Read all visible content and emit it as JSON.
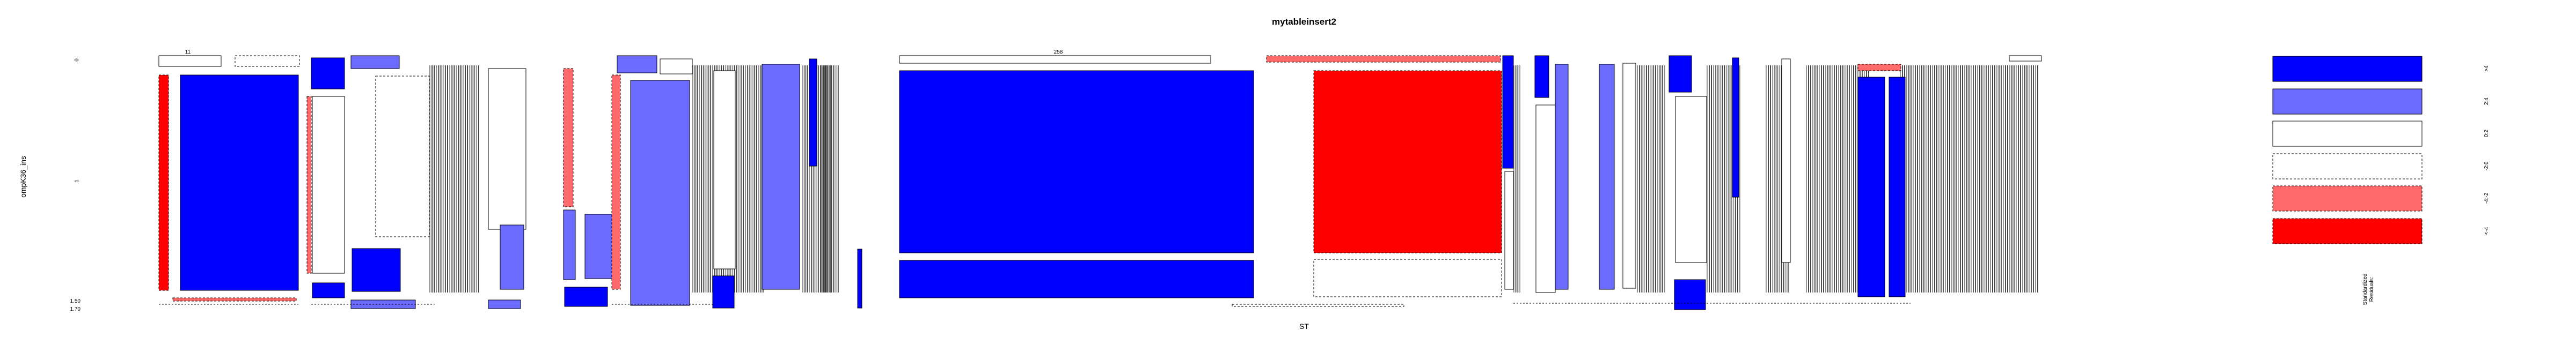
{
  "chart_data": {
    "type": "mosaic",
    "title": "mytableinsert2",
    "xlabel": "ST",
    "ylabel": "ompK36_ins",
    "y_levels": [
      "0",
      "1",
      "1.50",
      "1.70"
    ],
    "legend": {
      "title": "Standardized\nResiduals:",
      "entries": [
        {
          "label": ">4",
          "fill": "#0000ff",
          "border": "solid"
        },
        {
          "label": "2:4",
          "fill": "#6b6bff",
          "border": "solid"
        },
        {
          "label": "0:2",
          "fill": "#ffffff",
          "border": "solid"
        },
        {
          "label": "-2:0",
          "fill": "#ffffff",
          "border": "dashed"
        },
        {
          "label": "-4:-2",
          "fill": "#ff6b6b",
          "border": "dashed"
        },
        {
          "label": "<-4",
          "fill": "#ff0000",
          "border": "dashed"
        }
      ]
    },
    "notable_cells": [
      {
        "x_level": "258",
        "y_level": "1",
        "residual_class": ">4"
      },
      {
        "x_level": "11",
        "y_level": "0",
        "residual_class": ">4"
      },
      {
        "x_level": "11",
        "y_level": "1",
        "residual_class": ">4"
      },
      {
        "x_level": "258",
        "y_level": "0",
        "residual_class": "<-4"
      },
      {
        "x_level": "11",
        "y_level": "1.50",
        "residual_class": "<-4"
      }
    ],
    "top_x_labels": [
      "11",
      "258"
    ]
  },
  "colors": {
    "strong_pos": "#0000ff",
    "pos": "#6b6bff",
    "neutral": "#ffffff",
    "neg": "#ff6b6b",
    "strong_neg": "#ff0000",
    "hatch": "#3c3c3c"
  }
}
